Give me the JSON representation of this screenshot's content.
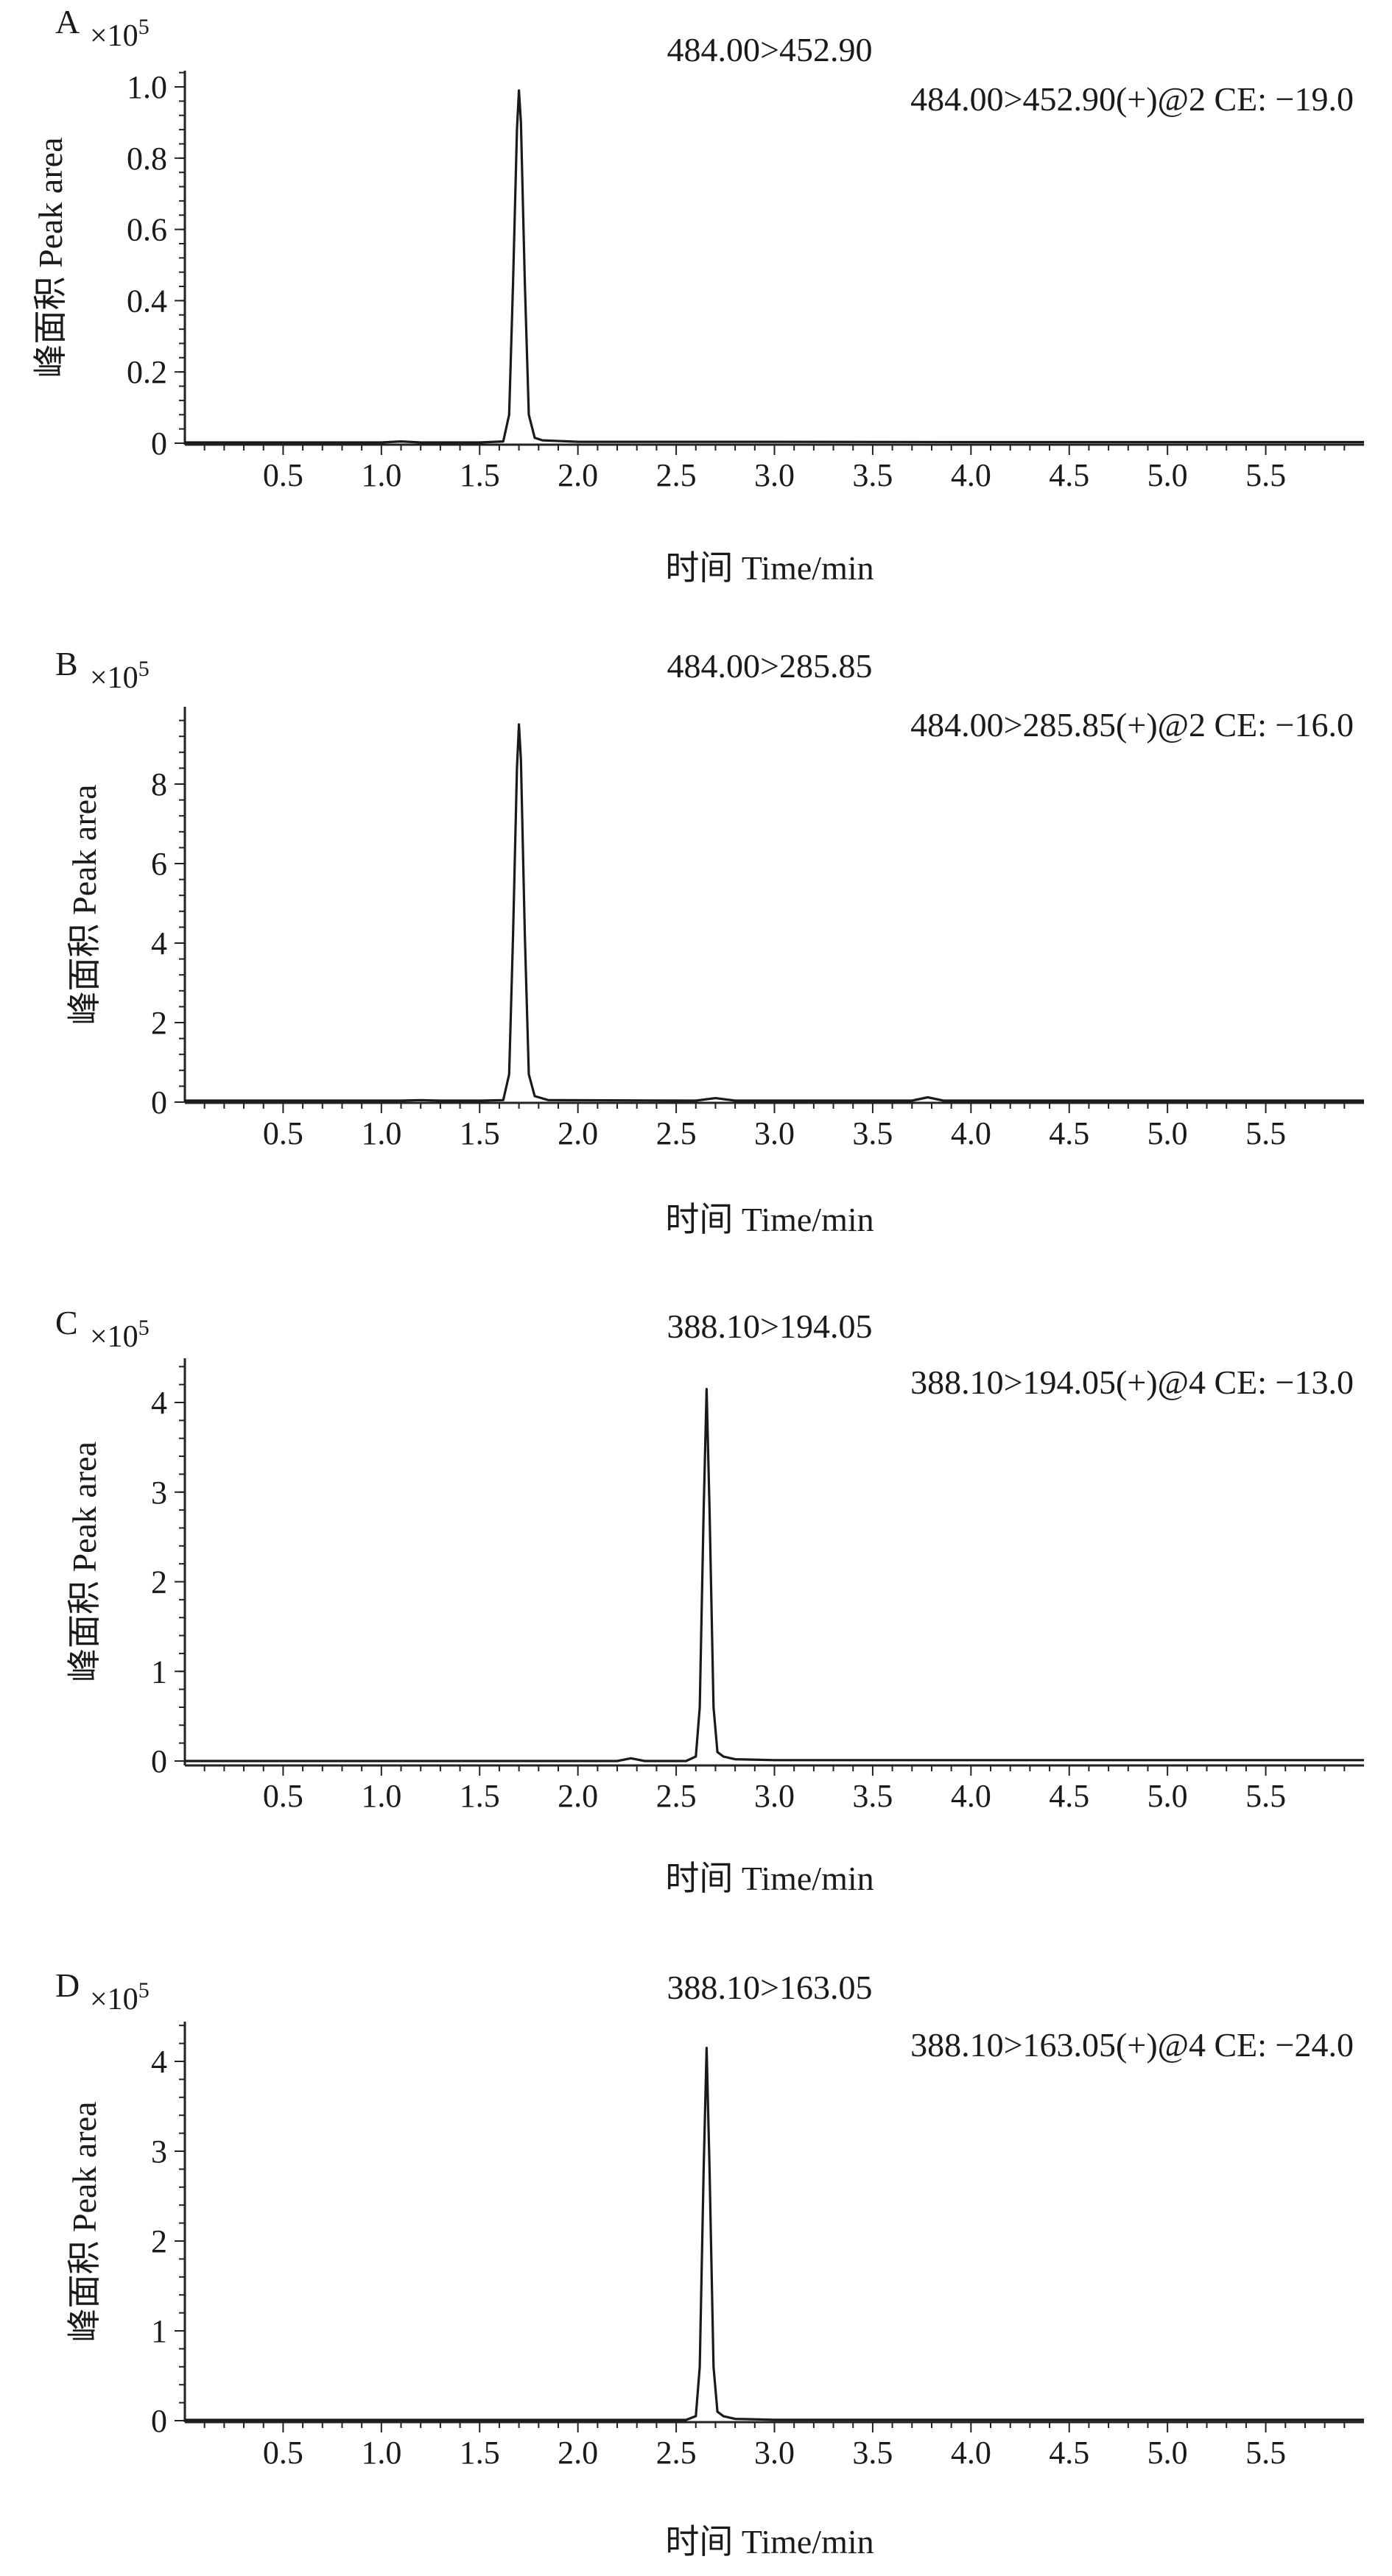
{
  "chart_data": [
    {
      "type": "line",
      "panel_label": "A",
      "title": "484.00>452.90",
      "annotation": "484.00>452.90(+)@2 CE: −19.0",
      "ylabel": "峰面积 Peak area",
      "xlabel": "时间 Time/min",
      "y_multiplier": "×10",
      "y_exponent": "5",
      "xlim": [
        0.0,
        6.0
      ],
      "ylim": [
        0,
        1.05
      ],
      "x_ticks": [
        0.5,
        1.0,
        1.5,
        2.0,
        2.5,
        3.0,
        3.5,
        4.0,
        4.5,
        5.0,
        5.5
      ],
      "x_tick_labels": [
        "0.5",
        "1.0",
        "1.5",
        "2.0",
        "2.5",
        "3.0",
        "3.5",
        "4.0",
        "4.5",
        "5.0",
        "5.5"
      ],
      "y_ticks": [
        0,
        0.2,
        0.4,
        0.6,
        0.8,
        1.0
      ],
      "y_tick_labels": [
        "0",
        "0.2",
        "0.4",
        "0.6",
        "0.8",
        "1.0"
      ],
      "series": [
        {
          "x": [
            0.0,
            1.0,
            1.1,
            1.2,
            1.5,
            1.62,
            1.65,
            1.67,
            1.69,
            1.7,
            1.71,
            1.73,
            1.75,
            1.78,
            1.82,
            2.0,
            3.0,
            4.0,
            5.0,
            6.0
          ],
          "y": [
            0.0,
            0.0,
            0.005,
            0.0,
            0.0,
            0.005,
            0.08,
            0.45,
            0.88,
            0.99,
            0.9,
            0.45,
            0.08,
            0.015,
            0.008,
            0.004,
            0.004,
            0.003,
            0.003,
            0.003
          ]
        }
      ]
    },
    {
      "type": "line",
      "panel_label": "B",
      "title": "484.00>285.85",
      "annotation": "484.00>285.85(+)@2 CE: −16.0",
      "ylabel": "峰面积 Peak area",
      "xlabel": "时间 Time/min",
      "y_multiplier": "×10",
      "y_exponent": "5",
      "xlim": [
        0.0,
        6.0
      ],
      "ylim": [
        0,
        10.2
      ],
      "x_ticks": [
        0.5,
        1.0,
        1.5,
        2.0,
        2.5,
        3.0,
        3.5,
        4.0,
        4.5,
        5.0,
        5.5
      ],
      "x_tick_labels": [
        "0.5",
        "1.0",
        "1.5",
        "2.0",
        "2.5",
        "3.0",
        "3.5",
        "4.0",
        "4.5",
        "5.0",
        "5.5"
      ],
      "y_ticks": [
        0,
        2,
        4,
        6,
        8
      ],
      "y_tick_labels": [
        "0",
        "2",
        "4",
        "6",
        "8"
      ],
      "series": [
        {
          "x": [
            0.0,
            1.1,
            1.2,
            1.3,
            1.5,
            1.62,
            1.65,
            1.67,
            1.69,
            1.7,
            1.71,
            1.73,
            1.75,
            1.78,
            1.85,
            2.6,
            2.7,
            2.8,
            3.7,
            3.78,
            3.86,
            6.0
          ],
          "y": [
            0.0,
            0.0,
            0.05,
            0.0,
            0.0,
            0.05,
            0.7,
            4.2,
            8.4,
            9.5,
            8.6,
            4.2,
            0.7,
            0.15,
            0.05,
            0.02,
            0.1,
            0.02,
            0.02,
            0.12,
            0.02,
            0.02
          ]
        }
      ]
    },
    {
      "type": "line",
      "panel_label": "C",
      "title": "388.10>194.05",
      "annotation": "388.10>194.05(+)@4 CE: −13.0",
      "ylabel": "峰面积 Peak area",
      "xlabel": "时间 Time/min",
      "y_multiplier": "×10",
      "y_exponent": "5",
      "xlim": [
        0.0,
        6.0
      ],
      "ylim": [
        0,
        4.5
      ],
      "x_ticks": [
        0.5,
        1.0,
        1.5,
        2.0,
        2.5,
        3.0,
        3.5,
        4.0,
        4.5,
        5.0,
        5.5
      ],
      "x_tick_labels": [
        "0.5",
        "1.0",
        "1.5",
        "2.0",
        "2.5",
        "3.0",
        "3.5",
        "4.0",
        "4.5",
        "5.0",
        "5.5"
      ],
      "y_ticks": [
        0,
        1,
        2,
        3,
        4
      ],
      "y_tick_labels": [
        "0",
        "1",
        "2",
        "3",
        "4"
      ],
      "series": [
        {
          "x": [
            0.0,
            2.2,
            2.27,
            2.34,
            2.55,
            2.6,
            2.62,
            2.64,
            2.655,
            2.67,
            2.69,
            2.71,
            2.74,
            2.8,
            3.0,
            6.0
          ],
          "y": [
            0.0,
            0.0,
            0.03,
            0.0,
            0.0,
            0.05,
            0.6,
            2.8,
            4.15,
            2.8,
            0.6,
            0.1,
            0.05,
            0.02,
            0.01,
            0.01
          ]
        }
      ]
    },
    {
      "type": "line",
      "panel_label": "D",
      "title": "388.10>163.05",
      "annotation": "388.10>163.05(+)@4 CE: −24.0",
      "ylabel": "峰面积 Peak area",
      "xlabel": "时间 Time/min",
      "y_multiplier": "×10",
      "y_exponent": "5",
      "xlim": [
        0.0,
        6.0
      ],
      "ylim": [
        0,
        4.5
      ],
      "x_ticks": [
        0.5,
        1.0,
        1.5,
        2.0,
        2.5,
        3.0,
        3.5,
        4.0,
        4.5,
        5.0,
        5.5
      ],
      "x_tick_labels": [
        "0.5",
        "1.0",
        "1.5",
        "2.0",
        "2.5",
        "3.0",
        "3.5",
        "4.0",
        "4.5",
        "5.0",
        "5.5"
      ],
      "y_ticks": [
        0,
        1,
        2,
        3,
        4
      ],
      "y_tick_labels": [
        "0",
        "1",
        "2",
        "3",
        "4"
      ],
      "series": [
        {
          "x": [
            0.0,
            2.55,
            2.6,
            2.62,
            2.64,
            2.655,
            2.67,
            2.69,
            2.71,
            2.74,
            2.8,
            3.0,
            6.0
          ],
          "y": [
            0.0,
            0.0,
            0.05,
            0.6,
            2.8,
            4.15,
            2.8,
            0.6,
            0.1,
            0.05,
            0.02,
            0.01,
            0.01
          ]
        }
      ]
    }
  ]
}
